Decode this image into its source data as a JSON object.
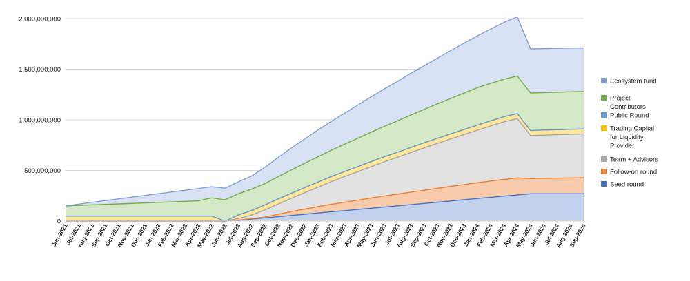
{
  "chart_data": {
    "type": "area",
    "stacked": true,
    "title": "",
    "xlabel": "",
    "ylabel": "",
    "ylim": [
      0,
      2000000000
    ],
    "yticks": [
      0,
      500000000,
      1000000000,
      1500000000,
      2000000000
    ],
    "ytick_labels": [
      "0",
      "500,000,000",
      "1,000,000,000",
      "1,500,000,000",
      "2,000,000,000"
    ],
    "grid": true,
    "legend_position": "right",
    "categories": [
      "Jun-2021",
      "Jul-2021",
      "Aug-2021",
      "Sep-2021",
      "Oct-2021",
      "Nov-2021",
      "Dec-2021",
      "Jan-2022",
      "Feb-2022",
      "Mar-2022",
      "Apr-2022",
      "May-2022",
      "Jun-2022",
      "Jul-2022",
      "Aug-2022",
      "Sep-2022",
      "Oct-2022",
      "Nov-2022",
      "Dec-2022",
      "Jan-2023",
      "Feb-2023",
      "Mar-2023",
      "Apr-2023",
      "May-2023",
      "Jun-2023",
      "Jul-2023",
      "Aug-2023",
      "Sep-2023",
      "Oct-2023",
      "Nov-2023",
      "Dec-2023",
      "Jan-2024",
      "Feb-2024",
      "Mar-2024",
      "Apr-2024",
      "May-2024",
      "Jun-2024",
      "Jul-2024",
      "Aug-2024",
      "Sep-2024"
    ],
    "series": [
      {
        "name": "Seed round",
        "color": "#4472c4",
        "fill": "#c3d1ec",
        "values": [
          0,
          0,
          0,
          0,
          0,
          0,
          0,
          0,
          0,
          0,
          0,
          0,
          0,
          8000000,
          20000000,
          32000000,
          44000000,
          56000000,
          68000000,
          80000000,
          92000000,
          103000000,
          115000000,
          127000000,
          139000000,
          151000000,
          163000000,
          175000000,
          187000000,
          199000000,
          211000000,
          223000000,
          235000000,
          247000000,
          258000000,
          270000000,
          270000000,
          270000000,
          270000000,
          270000000
        ]
      },
      {
        "name": "Follow-on round",
        "color": "#ed7d31",
        "fill": "#f8cbad",
        "values": [
          0,
          0,
          0,
          0,
          0,
          0,
          0,
          0,
          0,
          0,
          0,
          0,
          0,
          2000000,
          5000000,
          8000000,
          24000000,
          39000000,
          51000000,
          63000000,
          74000000,
          83000000,
          92000000,
          101000000,
          109000000,
          116000000,
          123000000,
          130000000,
          137000000,
          144000000,
          150000000,
          156000000,
          161000000,
          165000000,
          168000000,
          150000000,
          152000000,
          154000000,
          156000000,
          158000000
        ]
      },
      {
        "name": "Team + Advisors",
        "color": "#a5a5a5",
        "fill": "#e2e2e2",
        "values": [
          0,
          0,
          0,
          0,
          0,
          0,
          0,
          0,
          0,
          0,
          0,
          0,
          0,
          15000000,
          35000000,
          70000000,
          101000000,
          130000000,
          162000000,
          192000000,
          224000000,
          254000000,
          281000000,
          310000000,
          338000000,
          364000000,
          392000000,
          419000000,
          444000000,
          469000000,
          494000000,
          519000000,
          544000000,
          569000000,
          586000000,
          425000000,
          427000000,
          429000000,
          431000000,
          432000000
        ]
      },
      {
        "name": "Trading Capital for Liquidity Provider",
        "color": "#ffc000",
        "fill": "#ffe699",
        "values": [
          50000000,
          50000000,
          50000000,
          50000000,
          50000000,
          50000000,
          50000000,
          50000000,
          50000000,
          50000000,
          50000000,
          50000000,
          0,
          35000000,
          45000000,
          50000000,
          50000000,
          50000000,
          50000000,
          50000000,
          50000000,
          50000000,
          50000000,
          50000000,
          50000000,
          50000000,
          50000000,
          50000000,
          50000000,
          50000000,
          50000000,
          50000000,
          50000000,
          50000000,
          50000000,
          50000000,
          50000000,
          50000000,
          50000000,
          50000000
        ]
      },
      {
        "name": "Public Round",
        "color": "#5b9bd5",
        "fill": "#bdd7ee",
        "values": [
          0,
          0,
          0,
          0,
          0,
          0,
          0,
          0,
          0,
          0,
          0,
          0,
          0,
          0,
          0,
          0,
          0,
          0,
          0,
          0,
          0,
          0,
          0,
          0,
          0,
          0,
          0,
          0,
          0,
          0,
          0,
          0,
          0,
          0,
          0,
          0,
          0,
          0,
          0,
          0
        ]
      },
      {
        "name": "Project Contributors",
        "color": "#70ad47",
        "fill": "#d5e8c8",
        "values": [
          100000000,
          105000000,
          110000000,
          115000000,
          120000000,
          125000000,
          130000000,
          135000000,
          140000000,
          145000000,
          150000000,
          180000000,
          210000000,
          210000000,
          210000000,
          210000000,
          220000000,
          230000000,
          240000000,
          250000000,
          260000000,
          270000000,
          280000000,
          290000000,
          300000000,
          310000000,
          320000000,
          330000000,
          340000000,
          350000000,
          360000000,
          370000000,
          370000000,
          370000000,
          370000000,
          370000000,
          370000000,
          370000000,
          370000000,
          370000000
        ]
      },
      {
        "name": "Ecosystem fund",
        "color": "#7f9fd5",
        "fill": "#d9e1f4",
        "values": [
          0,
          13000000,
          26000000,
          38000000,
          50000000,
          62000000,
          74000000,
          86000000,
          98000000,
          110000000,
          122000000,
          110000000,
          115000000,
          118000000,
          130000000,
          160000000,
          190000000,
          218000000,
          240000000,
          265000000,
          285000000,
          305000000,
          328000000,
          349000000,
          370000000,
          390000000,
          412000000,
          431000000,
          452000000,
          472000000,
          493000000,
          512000000,
          537000000,
          562000000,
          585000000,
          435000000,
          434000000,
          433000000,
          432000000,
          430000000
        ]
      }
    ],
    "legend_order": [
      "Ecosystem fund",
      "Project Contributors",
      "Public Round",
      "Trading Capital for Liquidity Provider",
      "Team + Advisors",
      "Follow-on round",
      "Seed round"
    ]
  },
  "legend_lines": {
    "Ecosystem fund": [
      "Ecosystem fund"
    ],
    "Project Contributors": [
      "Project",
      "Contributors"
    ],
    "Public Round": [
      "Public Round"
    ],
    "Trading Capital for Liquidity Provider": [
      "Trading Capital",
      "for Liquidity",
      "Provider"
    ],
    "Team + Advisors": [
      "Team + Advisors"
    ],
    "Follow-on round": [
      "Follow-on round"
    ],
    "Seed round": [
      "Seed round"
    ]
  }
}
